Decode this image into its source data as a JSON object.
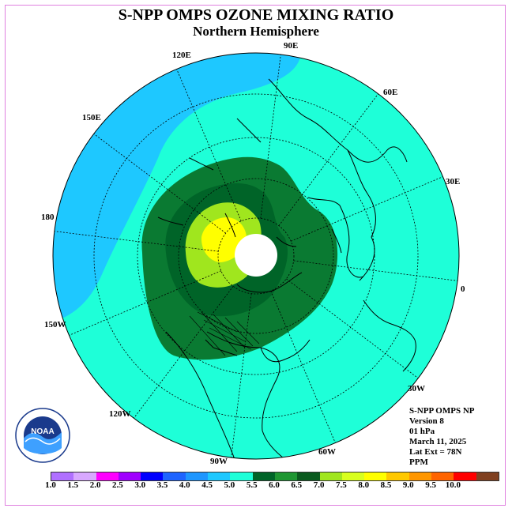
{
  "header": {
    "title": "S-NPP OMPS OZONE MIXING RATIO",
    "subtitle": "Northern Hemisphere"
  },
  "map": {
    "projection": "north-polar-stereographic",
    "colors": {
      "ocean_low": "#1ec8ff",
      "base": "#1effd8",
      "green_dark": "#006428",
      "green_mid": "#0a7a32",
      "green_light": "#1e9632",
      "lime": "#a0e61e",
      "yellow": "#ffff00",
      "polar_night": "#ffffff",
      "coast": "#000000",
      "grid": "#000000"
    },
    "longitude_labels": [
      "90E",
      "60E",
      "120E",
      "150E",
      "30E",
      "180",
      "0",
      "150W",
      "30W",
      "120W",
      "60W",
      "90W"
    ]
  },
  "info": {
    "lines": [
      "S-NPP OMPS NP",
      "Version 8",
      "01 hPa",
      "March 11, 2025",
      "Lat Ext = 78N",
      "PPM"
    ]
  },
  "logo": {
    "text": "NOAA",
    "icon": "noaa-logo-icon"
  },
  "colorbar": {
    "colors": [
      "#b070ff",
      "#d8a8ff",
      "#ff00ff",
      "#a000ff",
      "#0000ff",
      "#1e64ff",
      "#1e96ff",
      "#1ec8ff",
      "#1effd8",
      "#006428",
      "#1e9632",
      "#0a5a1e",
      "#a0e61e",
      "#d8ff1e",
      "#ffff00",
      "#ffc800",
      "#ff9600",
      "#ff6400",
      "#ff0000",
      "#804020"
    ],
    "labels": [
      "1.0",
      "1.5",
      "2.0",
      "2.5",
      "3.0",
      "3.5",
      "4.0",
      "4.5",
      "5.0",
      "5.5",
      "6.0",
      "6.5",
      "7.0",
      "7.5",
      "8.0",
      "8.5",
      "9.0",
      "9.5",
      "10.0"
    ]
  }
}
